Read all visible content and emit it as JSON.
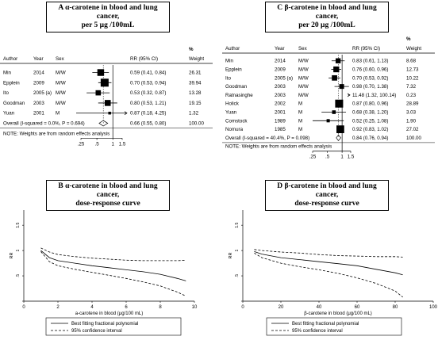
{
  "chart_data": [
    {
      "type": "forest",
      "panel": "A",
      "title_line1": "A   α-carotene in blood and lung cancer,",
      "title_line2": "per 5 μg /100mL",
      "columns": {
        "author": "Author",
        "year": "Year",
        "sex": "Sex",
        "rr": "RR (95% CI)",
        "weight_pct": "%",
        "weight": "Weight"
      },
      "rows": [
        {
          "author": "Min",
          "year": "2014",
          "sex": "M/W",
          "rr": 0.59,
          "lo": 0.41,
          "hi": 0.84,
          "label": "0.59 (0.41, 0.84)",
          "weight": "26.31"
        },
        {
          "author": "Epplein",
          "year": "2009",
          "sex": "M/W",
          "rr": 0.7,
          "lo": 0.53,
          "hi": 0.94,
          "label": "0.70 (0.53, 0.94)",
          "weight": "39.94"
        },
        {
          "author": "Ito",
          "year": "2005 (a)",
          "sex": "M/W",
          "rr": 0.53,
          "lo": 0.32,
          "hi": 0.87,
          "label": "0.53 (0.32, 0.87)",
          "weight": "13.28"
        },
        {
          "author": "Goodman",
          "year": "2003",
          "sex": "M/W",
          "rr": 0.8,
          "lo": 0.53,
          "hi": 1.21,
          "label": "0.80 (0.53, 1.21)",
          "weight": "19.15"
        },
        {
          "author": "Yuan",
          "year": "2001",
          "sex": "M",
          "rr": 0.87,
          "lo": 0.18,
          "hi": 4.25,
          "label": "0.87 (0.18, 4.25)",
          "weight": "1.32"
        }
      ],
      "overall": {
        "text": "Overall  (I-squared = 0.0%, P = 0.694)",
        "rr": 0.66,
        "lo": 0.55,
        "hi": 0.8,
        "label": "0.66 (0.55, 0.80)",
        "weight": "100.00"
      },
      "note": "NOTE: Weights are from random effects analysis",
      "ticks": [
        0.25,
        0.5,
        1,
        1.5
      ],
      "tick_labels": [
        ".25",
        ".5",
        "1",
        "1.5"
      ],
      "xlim": [
        0.25,
        1.5
      ]
    },
    {
      "type": "forest",
      "panel": "C",
      "title_line1": "C   β-carotene in blood and lung cancer,",
      "title_line2": "per 20 μg /100mL",
      "columns": {
        "author": "Author",
        "year": "Year",
        "sex": "Sex",
        "rr": "RR (95% CI)",
        "weight_pct": "%",
        "weight": "Weight"
      },
      "rows": [
        {
          "author": "Min",
          "year": "2014",
          "sex": "M/W",
          "rr": 0.83,
          "lo": 0.61,
          "hi": 1.13,
          "label": "0.83 (0.61, 1.13)",
          "weight": "8.68"
        },
        {
          "author": "Epplein",
          "year": "2009",
          "sex": "M/W",
          "rr": 0.76,
          "lo": 0.6,
          "hi": 0.96,
          "label": "0.76 (0.60, 0.96)",
          "weight": "12.73"
        },
        {
          "author": "Ito",
          "year": "2005 (a)",
          "sex": "M/W",
          "rr": 0.7,
          "lo": 0.53,
          "hi": 0.92,
          "label": "0.70 (0.53, 0.92)",
          "weight": "10.22"
        },
        {
          "author": "Goodman",
          "year": "2003",
          "sex": "M/W",
          "rr": 0.98,
          "lo": 0.7,
          "hi": 1.38,
          "label": "0.98 (0.70, 1.38)",
          "weight": "7.32"
        },
        {
          "author": "Ratnasinghe",
          "year": "2003",
          "sex": "M/W",
          "rr": 11.48,
          "lo": 1.32,
          "hi": 100.14,
          "label": "11.48 (1.32, 100.14)",
          "weight": "0.23"
        },
        {
          "author": "Holick",
          "year": "2002",
          "sex": "M",
          "rr": 0.87,
          "lo": 0.8,
          "hi": 0.96,
          "label": "0.87 (0.80, 0.96)",
          "weight": "28.89"
        },
        {
          "author": "Yuan",
          "year": "2001",
          "sex": "M",
          "rr": 0.68,
          "lo": 0.38,
          "hi": 1.2,
          "label": "0.68 (0.38, 1.20)",
          "weight": "3.03"
        },
        {
          "author": "Comstock",
          "year": "1989",
          "sex": "M",
          "rr": 0.52,
          "lo": 0.25,
          "hi": 1.08,
          "label": "0.52 (0.25, 1.08)",
          "weight": "1.90"
        },
        {
          "author": "Nomura",
          "year": "1985",
          "sex": "M",
          "rr": 0.92,
          "lo": 0.83,
          "hi": 1.02,
          "label": "0.92 (0.83, 1.02)",
          "weight": "27.02"
        }
      ],
      "overall": {
        "text": "Overall  (I-squared = 40.4%, P = 0.098)",
        "rr": 0.84,
        "lo": 0.76,
        "hi": 0.94,
        "label": "0.84 (0.76, 0.94)",
        "weight": "100.00"
      },
      "note": "NOTE: Weights are from random effects analysis",
      "ticks": [
        0.25,
        0.5,
        1,
        1.5
      ],
      "tick_labels": [
        ".25",
        ".5",
        "1",
        "1.5"
      ],
      "xlim": [
        0.25,
        1.5
      ]
    },
    {
      "type": "line",
      "panel": "B",
      "title_line1": "B   α-carotene in blood and lung cancer,",
      "title_line2": "dose-response curve",
      "xlabel": "a-carotene in blood (μg/100 mL)",
      "ylabel": "RR",
      "xlim": [
        0,
        10
      ],
      "ylim": [
        0,
        1.8
      ],
      "xticks": [
        0,
        2,
        4,
        6,
        8,
        10
      ],
      "yticks": [
        0,
        0.5,
        1,
        1.5
      ],
      "ytick_labels": [
        ".5",
        "1",
        "1.5"
      ],
      "series": [
        {
          "name": "Best fitting fractional polynomial",
          "style": "solid",
          "x": [
            1,
            1.5,
            2,
            3,
            4,
            5,
            6,
            7,
            8,
            9,
            9.5
          ],
          "y": [
            1.0,
            0.86,
            0.8,
            0.75,
            0.7,
            0.66,
            0.62,
            0.58,
            0.53,
            0.45,
            0.4
          ]
        },
        {
          "name": "95% confidence interval",
          "style": "dashed",
          "x": [
            1,
            1.5,
            2,
            3,
            4,
            5,
            6,
            7,
            8,
            9,
            9.5
          ],
          "y": [
            1.05,
            0.97,
            0.92,
            0.88,
            0.85,
            0.83,
            0.81,
            0.8,
            0.8,
            0.8,
            0.81
          ]
        },
        {
          "name": "",
          "style": "dashed",
          "x": [
            1,
            1.5,
            2,
            3,
            4,
            5,
            6,
            7,
            8,
            9,
            9.5
          ],
          "y": [
            0.98,
            0.78,
            0.7,
            0.63,
            0.57,
            0.51,
            0.45,
            0.38,
            0.3,
            0.18,
            0.1
          ]
        }
      ],
      "legend": [
        "Best fitting fractional polynomial",
        "95% confidence interval"
      ]
    },
    {
      "type": "line",
      "panel": "D",
      "title_line1": "D   β-carotene in blood and lung cancer,",
      "title_line2": "dose-response curve",
      "xlabel": "β-carotene in blood (μg/100 mL)",
      "ylabel": "RR",
      "xlim": [
        0,
        100
      ],
      "ylim": [
        0,
        1.8
      ],
      "xticks": [
        0,
        20,
        40,
        60,
        80,
        100
      ],
      "yticks": [
        0,
        0.5,
        1,
        1.5
      ],
      "ytick_labels": [
        ".5",
        "1",
        "1.5"
      ],
      "series": [
        {
          "name": "Best fitting fractional polynomial",
          "style": "solid",
          "x": [
            6,
            10,
            20,
            30,
            40,
            50,
            60,
            70,
            80,
            84
          ],
          "y": [
            0.98,
            0.93,
            0.86,
            0.82,
            0.78,
            0.74,
            0.7,
            0.63,
            0.56,
            0.52
          ]
        },
        {
          "name": "95% confidence interval",
          "style": "dashed",
          "x": [
            6,
            10,
            20,
            30,
            40,
            50,
            60,
            70,
            80,
            84
          ],
          "y": [
            1.02,
            1.0,
            0.97,
            0.95,
            0.92,
            0.9,
            0.89,
            0.88,
            0.88,
            0.87
          ]
        },
        {
          "name": "",
          "style": "dashed",
          "x": [
            6,
            10,
            20,
            30,
            40,
            50,
            60,
            70,
            80,
            84
          ],
          "y": [
            0.95,
            0.86,
            0.75,
            0.68,
            0.62,
            0.55,
            0.46,
            0.35,
            0.2,
            0.08
          ]
        }
      ],
      "legend": [
        "Best fitting fractional polynomial",
        "95% confidence interval"
      ]
    }
  ]
}
